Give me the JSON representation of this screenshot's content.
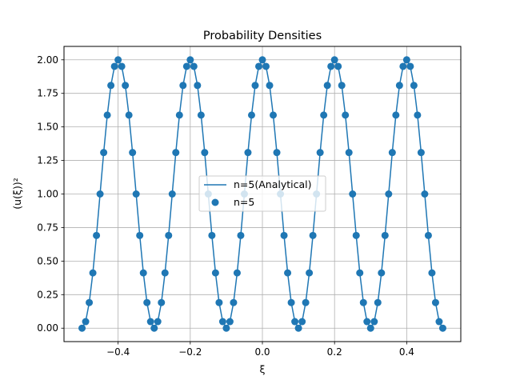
{
  "chart_data": {
    "type": "line",
    "title": "Probability Densities",
    "xlabel": "ξ",
    "ylabel": "(u(ξ))²",
    "xlim": [
      -0.55,
      0.55
    ],
    "ylim": [
      -0.1,
      2.1
    ],
    "xticks": [
      -0.4,
      -0.2,
      0.0,
      0.2,
      0.4
    ],
    "xtick_labels": [
      "−0.4",
      "−0.2",
      "0.0",
      "0.2",
      "0.4"
    ],
    "yticks": [
      0.0,
      0.25,
      0.5,
      0.75,
      1.0,
      1.25,
      1.5,
      1.75,
      2.0
    ],
    "ytick_labels": [
      "0.00",
      "0.25",
      "0.50",
      "0.75",
      "1.00",
      "1.25",
      "1.50",
      "1.75",
      "2.00"
    ],
    "grid": true,
    "legend": "center",
    "color": "#1f77b4",
    "series": [
      {
        "name": "n=5(Analytical)",
        "kind": "line",
        "x": [
          -0.5,
          -0.49,
          -0.48,
          -0.47,
          -0.46,
          -0.45,
          -0.44,
          -0.43,
          -0.42,
          -0.41,
          -0.4,
          -0.39,
          -0.38,
          -0.37,
          -0.36,
          -0.35,
          -0.34,
          -0.33,
          -0.32,
          -0.31,
          -0.3,
          -0.29,
          -0.28,
          -0.27,
          -0.26,
          -0.25,
          -0.24,
          -0.23,
          -0.22,
          -0.21,
          -0.2,
          -0.19,
          -0.18,
          -0.17,
          -0.16,
          -0.15,
          -0.14,
          -0.13,
          -0.12,
          -0.11,
          -0.1,
          -0.09,
          -0.08,
          -0.07,
          -0.06,
          -0.05,
          -0.04,
          -0.03,
          -0.02,
          -0.01,
          0.0,
          0.01,
          0.02,
          0.03,
          0.04,
          0.05,
          0.06,
          0.07,
          0.08,
          0.09,
          0.1,
          0.11,
          0.12,
          0.13,
          0.14,
          0.15,
          0.16,
          0.17,
          0.18,
          0.19,
          0.2,
          0.21,
          0.22,
          0.23,
          0.24,
          0.25,
          0.26,
          0.27,
          0.28,
          0.29,
          0.3,
          0.31,
          0.32,
          0.33,
          0.34,
          0.35,
          0.36,
          0.37,
          0.38,
          0.39,
          0.4,
          0.41,
          0.42,
          0.43,
          0.44,
          0.45,
          0.46,
          0.47,
          0.48,
          0.49,
          0.5
        ],
        "y": [
          0.0,
          0.049,
          0.191,
          0.412,
          0.691,
          1.0,
          1.309,
          1.588,
          1.809,
          1.951,
          2.0,
          1.951,
          1.809,
          1.588,
          1.309,
          1.0,
          0.691,
          0.412,
          0.191,
          0.049,
          0.0,
          0.049,
          0.191,
          0.412,
          0.691,
          1.0,
          1.309,
          1.588,
          1.809,
          1.951,
          2.0,
          1.951,
          1.809,
          1.588,
          1.309,
          1.0,
          0.691,
          0.412,
          0.191,
          0.049,
          0.0,
          0.049,
          0.191,
          0.412,
          0.691,
          1.0,
          1.309,
          1.588,
          1.809,
          1.951,
          2.0,
          1.951,
          1.809,
          1.588,
          1.309,
          1.0,
          0.691,
          0.412,
          0.191,
          0.049,
          0.0,
          0.049,
          0.191,
          0.412,
          0.691,
          1.0,
          1.309,
          1.588,
          1.809,
          1.951,
          2.0,
          1.951,
          1.809,
          1.588,
          1.309,
          1.0,
          0.691,
          0.412,
          0.191,
          0.049,
          0.0,
          0.049,
          0.191,
          0.412,
          0.691,
          1.0,
          1.309,
          1.588,
          1.809,
          1.951,
          2.0,
          1.951,
          1.809,
          1.588,
          1.309,
          1.0,
          0.691,
          0.412,
          0.191,
          0.049,
          0.0
        ]
      },
      {
        "name": "n=5",
        "kind": "scatter",
        "x": [
          -0.5,
          -0.49,
          -0.48,
          -0.47,
          -0.46,
          -0.45,
          -0.44,
          -0.43,
          -0.42,
          -0.41,
          -0.4,
          -0.39,
          -0.38,
          -0.37,
          -0.36,
          -0.35,
          -0.34,
          -0.33,
          -0.32,
          -0.31,
          -0.3,
          -0.29,
          -0.28,
          -0.27,
          -0.26,
          -0.25,
          -0.24,
          -0.23,
          -0.22,
          -0.21,
          -0.2,
          -0.19,
          -0.18,
          -0.17,
          -0.16,
          -0.15,
          -0.14,
          -0.13,
          -0.12,
          -0.11,
          -0.1,
          -0.09,
          -0.08,
          -0.07,
          -0.06,
          -0.05,
          -0.04,
          -0.03,
          -0.02,
          -0.01,
          0.0,
          0.01,
          0.02,
          0.03,
          0.04,
          0.05,
          0.06,
          0.07,
          0.08,
          0.09,
          0.1,
          0.11,
          0.12,
          0.13,
          0.14,
          0.15,
          0.16,
          0.17,
          0.18,
          0.19,
          0.2,
          0.21,
          0.22,
          0.23,
          0.24,
          0.25,
          0.26,
          0.27,
          0.28,
          0.29,
          0.3,
          0.31,
          0.32,
          0.33,
          0.34,
          0.35,
          0.36,
          0.37,
          0.38,
          0.39,
          0.4,
          0.41,
          0.42,
          0.43,
          0.44,
          0.45,
          0.46,
          0.47,
          0.48,
          0.49,
          0.5
        ],
        "y": [
          0.0,
          0.049,
          0.191,
          0.412,
          0.691,
          1.0,
          1.309,
          1.588,
          1.809,
          1.951,
          2.0,
          1.951,
          1.809,
          1.588,
          1.309,
          1.0,
          0.691,
          0.412,
          0.191,
          0.049,
          0.0,
          0.049,
          0.191,
          0.412,
          0.691,
          1.0,
          1.309,
          1.588,
          1.809,
          1.951,
          2.0,
          1.951,
          1.809,
          1.588,
          1.309,
          1.0,
          0.691,
          0.412,
          0.191,
          0.049,
          0.0,
          0.049,
          0.191,
          0.412,
          0.691,
          1.0,
          1.309,
          1.588,
          1.809,
          1.951,
          2.0,
          1.951,
          1.809,
          1.588,
          1.309,
          1.0,
          0.691,
          0.412,
          0.191,
          0.049,
          0.0,
          0.049,
          0.191,
          0.412,
          0.691,
          1.0,
          1.309,
          1.588,
          1.809,
          1.951,
          2.0,
          1.951,
          1.809,
          1.588,
          1.309,
          1.0,
          0.691,
          0.412,
          0.191,
          0.049,
          0.0,
          0.049,
          0.191,
          0.412,
          0.691,
          1.0,
          1.309,
          1.588,
          1.809,
          1.951,
          2.0,
          1.951,
          1.809,
          1.588,
          1.309,
          1.0,
          0.691,
          0.412,
          0.191,
          0.049,
          0.0
        ]
      }
    ]
  }
}
